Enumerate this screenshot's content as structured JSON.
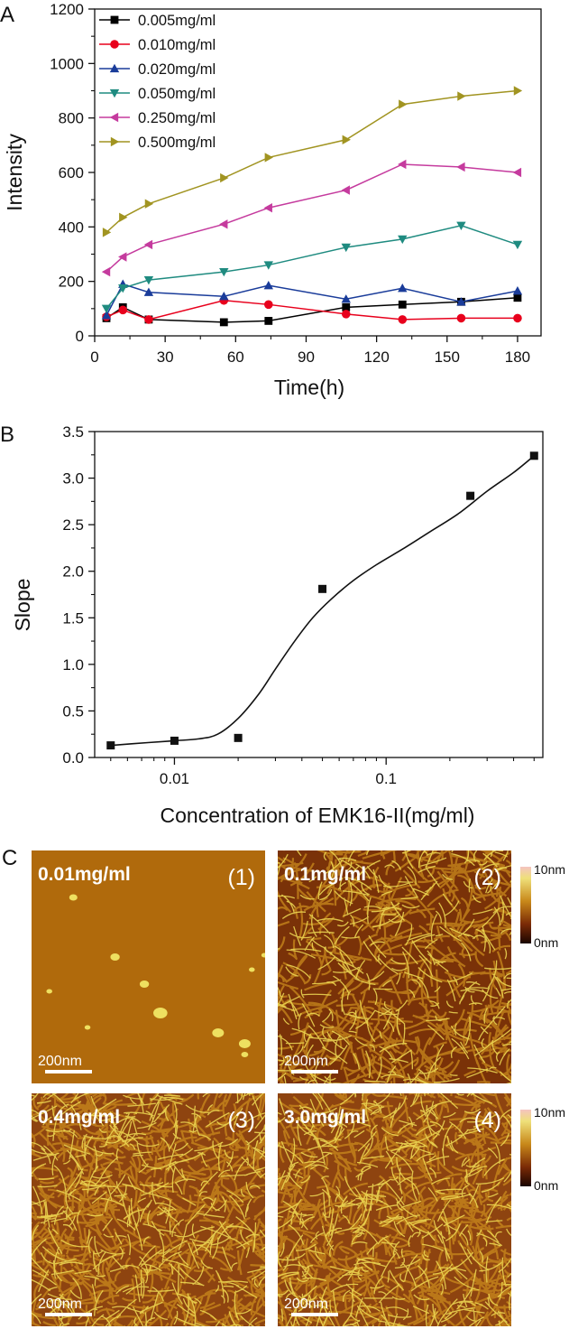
{
  "panels": {
    "A": {
      "letter": "A",
      "chart_data": {
        "type": "line",
        "xlabel": "Time(h)",
        "ylabel": "Intensity",
        "xlim": [
          0,
          190
        ],
        "ylim": [
          0,
          1200
        ],
        "xticks": [
          0,
          30,
          60,
          90,
          120,
          150,
          180
        ],
        "yticks": [
          0,
          200,
          400,
          600,
          800,
          1000,
          1200
        ],
        "legend_position": "top-left",
        "series": [
          {
            "name": "0.005mg/ml",
            "color": "#000000",
            "marker": "square",
            "x": [
              5,
              12,
              23,
              55,
              74,
              107,
              131,
              156,
              180
            ],
            "y": [
              65,
              105,
              60,
              50,
              55,
              105,
              115,
              125,
              140
            ]
          },
          {
            "name": "0.010mg/ml",
            "color": "#e8001c",
            "marker": "circle",
            "x": [
              5,
              12,
              23,
              55,
              74,
              107,
              131,
              156,
              180
            ],
            "y": [
              70,
              95,
              60,
              130,
              115,
              80,
              60,
              65,
              65
            ]
          },
          {
            "name": "0.020mg/ml",
            "color": "#1a3c9a",
            "marker": "triangle-up",
            "x": [
              5,
              12,
              23,
              55,
              74,
              107,
              131,
              156,
              180
            ],
            "y": [
              75,
              190,
              160,
              145,
              185,
              135,
              175,
              125,
              165
            ]
          },
          {
            "name": "0.050mg/ml",
            "color": "#1f8b80",
            "marker": "triangle-down",
            "x": [
              5,
              12,
              23,
              55,
              74,
              107,
              131,
              156,
              180
            ],
            "y": [
              100,
              175,
              205,
              235,
              260,
              325,
              355,
              405,
              335
            ]
          },
          {
            "name": "0.250mg/ml",
            "color": "#c53b9e",
            "marker": "triangle-left",
            "x": [
              5,
              12,
              23,
              55,
              74,
              107,
              131,
              156,
              180
            ],
            "y": [
              235,
              290,
              335,
              410,
              470,
              535,
              630,
              620,
              600
            ]
          },
          {
            "name": "0.500mg/ml",
            "color": "#a19421",
            "marker": "triangle-right",
            "x": [
              5,
              12,
              23,
              55,
              74,
              107,
              131,
              156,
              180
            ],
            "y": [
              380,
              435,
              485,
              580,
              655,
              720,
              850,
              880,
              900
            ]
          }
        ]
      }
    },
    "B": {
      "letter": "B",
      "chart_data": {
        "type": "scatter",
        "xscale": "log",
        "xlabel": "Concentration of EMK16-II(mg/ml)",
        "ylabel": "Slope",
        "xlim": [
          0.0042,
          0.55
        ],
        "ylim": [
          0,
          3.5
        ],
        "xticks": [
          0.01,
          0.1
        ],
        "xticklabels": [
          "0.01",
          "0.1"
        ],
        "yticks": [
          0.0,
          0.5,
          1.0,
          1.5,
          2.0,
          2.5,
          3.0,
          3.5
        ],
        "yticklabels": [
          "0.0",
          "0.5",
          "1.0",
          "1.5",
          "2.0",
          "2.5",
          "3.0",
          "3.5"
        ],
        "points": {
          "x": [
            0.005,
            0.01,
            0.02,
            0.05,
            0.25,
            0.5
          ],
          "y": [
            0.13,
            0.18,
            0.21,
            1.81,
            2.81,
            3.24
          ]
        },
        "fit_curve": {
          "x": [
            0.005,
            0.0075,
            0.01,
            0.013,
            0.016,
            0.02,
            0.025,
            0.03,
            0.037,
            0.045,
            0.055,
            0.07,
            0.09,
            0.12,
            0.16,
            0.22,
            0.3,
            0.4,
            0.5
          ],
          "y": [
            0.13,
            0.16,
            0.18,
            0.2,
            0.25,
            0.42,
            0.68,
            0.95,
            1.25,
            1.5,
            1.7,
            1.9,
            2.07,
            2.24,
            2.42,
            2.62,
            2.86,
            3.06,
            3.24
          ]
        },
        "color": "#111111"
      }
    },
    "C": {
      "letter": "C",
      "images": [
        {
          "conc": "0.01mg/ml",
          "num": "(1)",
          "scale": "200nm",
          "texture": "smooth-with-dots"
        },
        {
          "conc": "0.1mg/ml",
          "num": "(2)",
          "scale": "200nm",
          "texture": "fibrous-network"
        },
        {
          "conc": "0.4mg/ml",
          "num": "(3)",
          "scale": "200nm",
          "texture": "dense-fibrous"
        },
        {
          "conc": "3.0mg/ml",
          "num": "(4)",
          "scale": "200nm",
          "texture": "dense-fibrous"
        }
      ],
      "colorbars": [
        {
          "top": "10nm",
          "bottom": "0nm"
        },
        {
          "top": "10nm",
          "bottom": "0nm"
        }
      ],
      "colors": {
        "base": "#b06a10",
        "dark": "#4a1500",
        "bright": "#f2e85a",
        "cbar_top": "#f5c4c0"
      }
    }
  }
}
